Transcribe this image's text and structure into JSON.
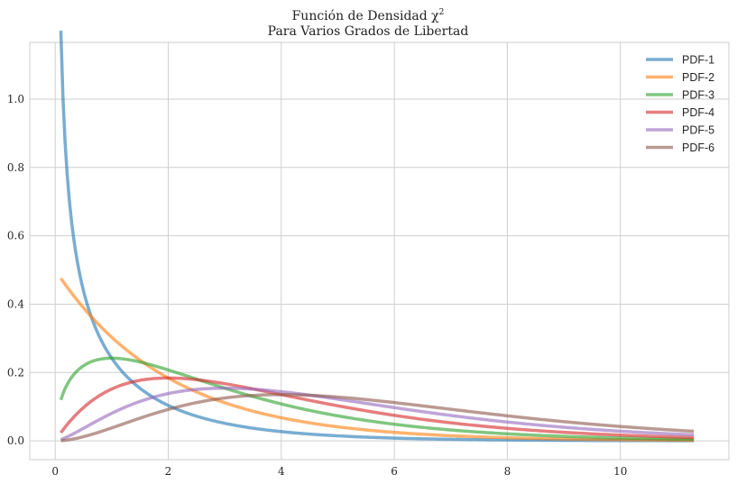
{
  "chart_data": {
    "type": "line",
    "title_line1": "Función de Densidad χ",
    "title_superscript": "2",
    "title_line2": "Para Varios Grados de Libertad",
    "xlabel": "",
    "ylabel": "",
    "xlim": [
      -0.45,
      11.92
    ],
    "ylim": [
      -0.055,
      1.166
    ],
    "x_range": [
      0.1,
      11.3
    ],
    "xticks": [
      0,
      2,
      4,
      6,
      8,
      10
    ],
    "yticks": [
      "0.0",
      "0.2",
      "0.4",
      "0.6",
      "0.8",
      "1.0"
    ],
    "grid": true,
    "legend_position": "top-right",
    "series": [
      {
        "name": "PDF-1",
        "df": 1,
        "color": "#1f77b4"
      },
      {
        "name": "PDF-2",
        "df": 2,
        "color": "#ff7f0e"
      },
      {
        "name": "PDF-3",
        "df": 3,
        "color": "#2ca02c"
      },
      {
        "name": "PDF-4",
        "df": 4,
        "color": "#d62728"
      },
      {
        "name": "PDF-5",
        "df": 5,
        "color": "#9467bd"
      },
      {
        "name": "PDF-6",
        "df": 6,
        "color": "#8c564b"
      }
    ]
  }
}
